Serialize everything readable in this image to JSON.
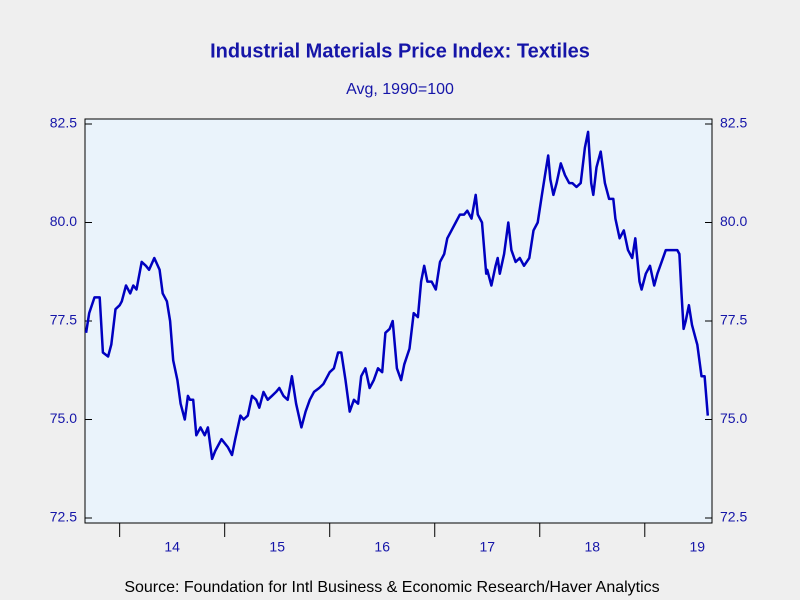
{
  "chart_data": {
    "type": "line",
    "title": "Industrial Materials Price Index: Textiles",
    "subtitle": "Avg, 1990=100",
    "source": "Source:  Foundation for Intl Business & Economic Research/Haver Analytics",
    "xlim": [
      2013.67,
      2019.64
    ],
    "xticks": [
      {
        "value": 2014.5,
        "label": "14"
      },
      {
        "value": 2015.5,
        "label": "15"
      },
      {
        "value": 2016.5,
        "label": "16"
      },
      {
        "value": 2017.5,
        "label": "17"
      },
      {
        "value": 2018.5,
        "label": "18"
      },
      {
        "value": 2019.5,
        "label": "19"
      }
    ],
    "xtick_marks": [
      2014,
      2015,
      2016,
      2017,
      2018,
      2019
    ],
    "ylim": [
      72.5,
      82.5
    ],
    "yticks": [
      72.5,
      {
        "value": 75,
        "label": "75.0"
      },
      77.5,
      {
        "value": 80,
        "label": "80.0"
      },
      82.5
    ],
    "x": [
      2013.68,
      2013.71,
      2013.76,
      2013.81,
      2013.84,
      2013.89,
      2013.92,
      2013.96,
      2014.0,
      2014.02,
      2014.06,
      2014.1,
      2014.13,
      2014.16,
      2014.21,
      2014.25,
      2014.28,
      2014.33,
      2014.38,
      2014.41,
      2014.45,
      2014.48,
      2014.51,
      2014.55,
      2014.58,
      2014.62,
      2014.65,
      2014.67,
      2014.7,
      2014.73,
      2014.77,
      2014.81,
      2014.84,
      2014.88,
      2014.91,
      2014.97,
      2015.03,
      2015.07,
      2015.1,
      2015.15,
      2015.18,
      2015.22,
      2015.26,
      2015.3,
      2015.33,
      2015.37,
      2015.41,
      2015.45,
      2015.49,
      2015.52,
      2015.56,
      2015.6,
      2015.64,
      2015.68,
      2015.73,
      2015.77,
      2015.81,
      2015.85,
      2015.9,
      2015.94,
      2016.0,
      2016.04,
      2016.08,
      2016.11,
      2016.15,
      2016.19,
      2016.23,
      2016.27,
      2016.3,
      2016.34,
      2016.38,
      2016.42,
      2016.46,
      2016.5,
      2016.53,
      2016.57,
      2016.6,
      2016.64,
      2016.68,
      2016.71,
      2016.76,
      2016.8,
      2016.84,
      2016.87,
      2016.9,
      2016.93,
      2016.97,
      2017.01,
      2017.05,
      2017.09,
      2017.12,
      2017.16,
      2017.2,
      2017.24,
      2017.28,
      2017.31,
      2017.35,
      2017.37,
      2017.39,
      2017.41,
      2017.45,
      2017.49,
      2017.5,
      2017.54,
      2017.58,
      2017.6,
      2017.62,
      2017.66,
      2017.7,
      2017.73,
      2017.77,
      2017.81,
      2017.85,
      2017.9,
      2017.94,
      2017.98,
      2018.02,
      2018.05,
      2018.08,
      2018.1,
      2018.13,
      2018.16,
      2018.2,
      2018.24,
      2018.28,
      2018.31,
      2018.35,
      2018.39,
      2018.43,
      2018.46,
      2018.49,
      2018.51,
      2018.54,
      2018.58,
      2018.62,
      2018.66,
      2018.7,
      2018.72,
      2018.76,
      2018.8,
      2018.84,
      2018.88,
      2018.91,
      2018.95,
      2018.97,
      2019.01,
      2019.05,
      2019.09,
      2019.12,
      2019.16,
      2019.2,
      2019.24,
      2019.28,
      2019.31,
      2019.33,
      2019.35,
      2019.37,
      2019.39,
      2019.42,
      2019.45,
      2019.49,
      2019.5,
      2019.54,
      2019.57,
      2019.6
    ],
    "series": [
      {
        "name": "Textiles",
        "color": "#0000c0",
        "values": [
          77.2,
          77.7,
          78.1,
          78.1,
          76.7,
          76.6,
          76.9,
          77.8,
          77.9,
          78.0,
          78.4,
          78.2,
          78.4,
          78.3,
          79.0,
          78.9,
          78.8,
          79.1,
          78.8,
          78.2,
          78.0,
          77.5,
          76.5,
          76.0,
          75.4,
          75.0,
          75.6,
          75.5,
          75.5,
          74.6,
          74.8,
          74.6,
          74.8,
          74.0,
          74.2,
          74.5,
          74.3,
          74.1,
          74.5,
          75.1,
          75.0,
          75.1,
          75.6,
          75.5,
          75.3,
          75.7,
          75.5,
          75.6,
          75.7,
          75.8,
          75.6,
          75.5,
          76.1,
          75.4,
          74.8,
          75.2,
          75.5,
          75.7,
          75.8,
          75.9,
          76.2,
          76.3,
          76.7,
          76.7,
          76.0,
          75.2,
          75.5,
          75.4,
          76.1,
          76.3,
          75.8,
          76.0,
          76.3,
          76.2,
          77.2,
          77.3,
          77.5,
          76.3,
          76.0,
          76.4,
          76.8,
          77.7,
          77.6,
          78.5,
          78.9,
          78.5,
          78.5,
          78.3,
          79.0,
          79.2,
          79.6,
          79.8,
          80.0,
          80.2,
          80.2,
          80.3,
          80.1,
          80.4,
          80.7,
          80.2,
          80.0,
          78.7,
          78.8,
          78.4,
          78.9,
          79.1,
          78.7,
          79.2,
          80.0,
          79.3,
          79.0,
          79.1,
          78.9,
          79.1,
          79.8,
          80.0,
          80.7,
          81.2,
          81.7,
          81.1,
          80.7,
          81.0,
          81.5,
          81.2,
          81.0,
          81.0,
          80.9,
          81.0,
          81.9,
          82.3,
          81.0,
          80.7,
          81.4,
          81.8,
          81.0,
          80.6,
          80.6,
          80.1,
          79.6,
          79.8,
          79.3,
          79.1,
          79.6,
          78.5,
          78.3,
          78.7,
          78.9,
          78.4,
          78.7,
          79.0,
          79.3,
          79.3,
          79.3,
          79.3,
          79.2,
          78.2,
          77.3,
          77.5,
          77.9,
          77.4,
          77.0,
          76.9,
          76.1,
          76.1,
          75.1
        ]
      }
    ]
  }
}
